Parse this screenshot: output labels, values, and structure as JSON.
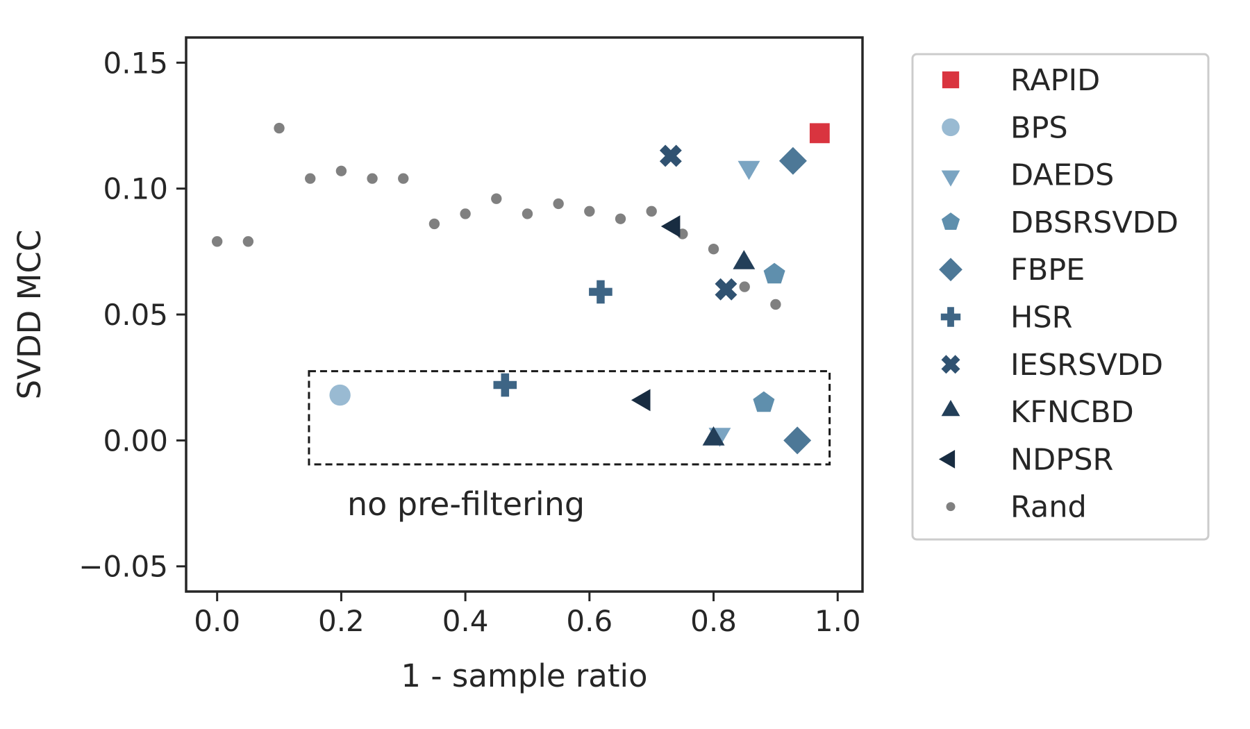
{
  "chart_data": {
    "type": "scatter",
    "xlabel": "1 - sample ratio",
    "ylabel": "SVDD MCC",
    "xlim": [
      -0.05,
      1.04
    ],
    "ylim": [
      -0.06,
      0.16
    ],
    "xticks": [
      0.0,
      0.2,
      0.4,
      0.6,
      0.8,
      1.0
    ],
    "xtick_labels": [
      "0.0",
      "0.2",
      "0.4",
      "0.6",
      "0.8",
      "1.0"
    ],
    "yticks": [
      -0.05,
      0.0,
      0.05,
      0.1,
      0.15
    ],
    "ytick_labels": [
      "−0.05",
      "0.00",
      "0.05",
      "0.10",
      "0.15"
    ],
    "grid": false,
    "legend_position": "outside-right",
    "annotation": {
      "text": "no pre-filtering",
      "box_x": [
        0.148,
        0.987
      ],
      "box_y": [
        -0.0095,
        0.0275
      ]
    },
    "series": [
      {
        "name": "RAPID",
        "marker": "square",
        "color": "#d9343f",
        "points": [
          {
            "x": 0.971,
            "y": 0.122
          }
        ]
      },
      {
        "name": "BPS",
        "marker": "circle",
        "color": "#99bad2",
        "points": [
          {
            "x": 0.198,
            "y": 0.018
          }
        ]
      },
      {
        "name": "DAEDS",
        "marker": "triangle-down",
        "color": "#7aa4c2",
        "points": [
          {
            "x": 0.857,
            "y": 0.109
          },
          {
            "x": 0.81,
            "y": 0.003
          }
        ]
      },
      {
        "name": "DBSRSVDD",
        "marker": "pentagon",
        "color": "#5f8fad",
        "points": [
          {
            "x": 0.898,
            "y": 0.066
          },
          {
            "x": 0.881,
            "y": 0.015
          }
        ]
      },
      {
        "name": "FBPE",
        "marker": "diamond",
        "color": "#4d7897",
        "points": [
          {
            "x": 0.928,
            "y": 0.111
          },
          {
            "x": 0.935,
            "y": 0.0
          }
        ]
      },
      {
        "name": "HSR",
        "marker": "plus",
        "color": "#3e6585",
        "points": [
          {
            "x": 0.618,
            "y": 0.059
          },
          {
            "x": 0.464,
            "y": 0.022
          }
        ]
      },
      {
        "name": "IESRSVDD",
        "marker": "x",
        "color": "#305271",
        "points": [
          {
            "x": 0.731,
            "y": 0.113
          },
          {
            "x": 0.82,
            "y": 0.06
          }
        ]
      },
      {
        "name": "KFNCBD",
        "marker": "triangle-up",
        "color": "#233f59",
        "points": [
          {
            "x": 0.849,
            "y": 0.07
          },
          {
            "x": 0.8,
            "y": 0.0
          }
        ]
      },
      {
        "name": "NDPSR",
        "marker": "triangle-left",
        "color": "#182c41",
        "points": [
          {
            "x": 0.738,
            "y": 0.085
          },
          {
            "x": 0.69,
            "y": 0.016
          }
        ]
      },
      {
        "name": "Rand",
        "marker": "dot",
        "color": "#808080",
        "points": [
          {
            "x": 0.0,
            "y": 0.079
          },
          {
            "x": 0.05,
            "y": 0.079
          },
          {
            "x": 0.1,
            "y": 0.124
          },
          {
            "x": 0.15,
            "y": 0.104
          },
          {
            "x": 0.2,
            "y": 0.107
          },
          {
            "x": 0.25,
            "y": 0.104
          },
          {
            "x": 0.3,
            "y": 0.104
          },
          {
            "x": 0.35,
            "y": 0.086
          },
          {
            "x": 0.4,
            "y": 0.09
          },
          {
            "x": 0.45,
            "y": 0.096
          },
          {
            "x": 0.5,
            "y": 0.09
          },
          {
            "x": 0.55,
            "y": 0.094
          },
          {
            "x": 0.6,
            "y": 0.091
          },
          {
            "x": 0.65,
            "y": 0.088
          },
          {
            "x": 0.7,
            "y": 0.091
          },
          {
            "x": 0.75,
            "y": 0.082
          },
          {
            "x": 0.8,
            "y": 0.076
          },
          {
            "x": 0.85,
            "y": 0.061
          },
          {
            "x": 0.9,
            "y": 0.054
          }
        ]
      }
    ]
  }
}
